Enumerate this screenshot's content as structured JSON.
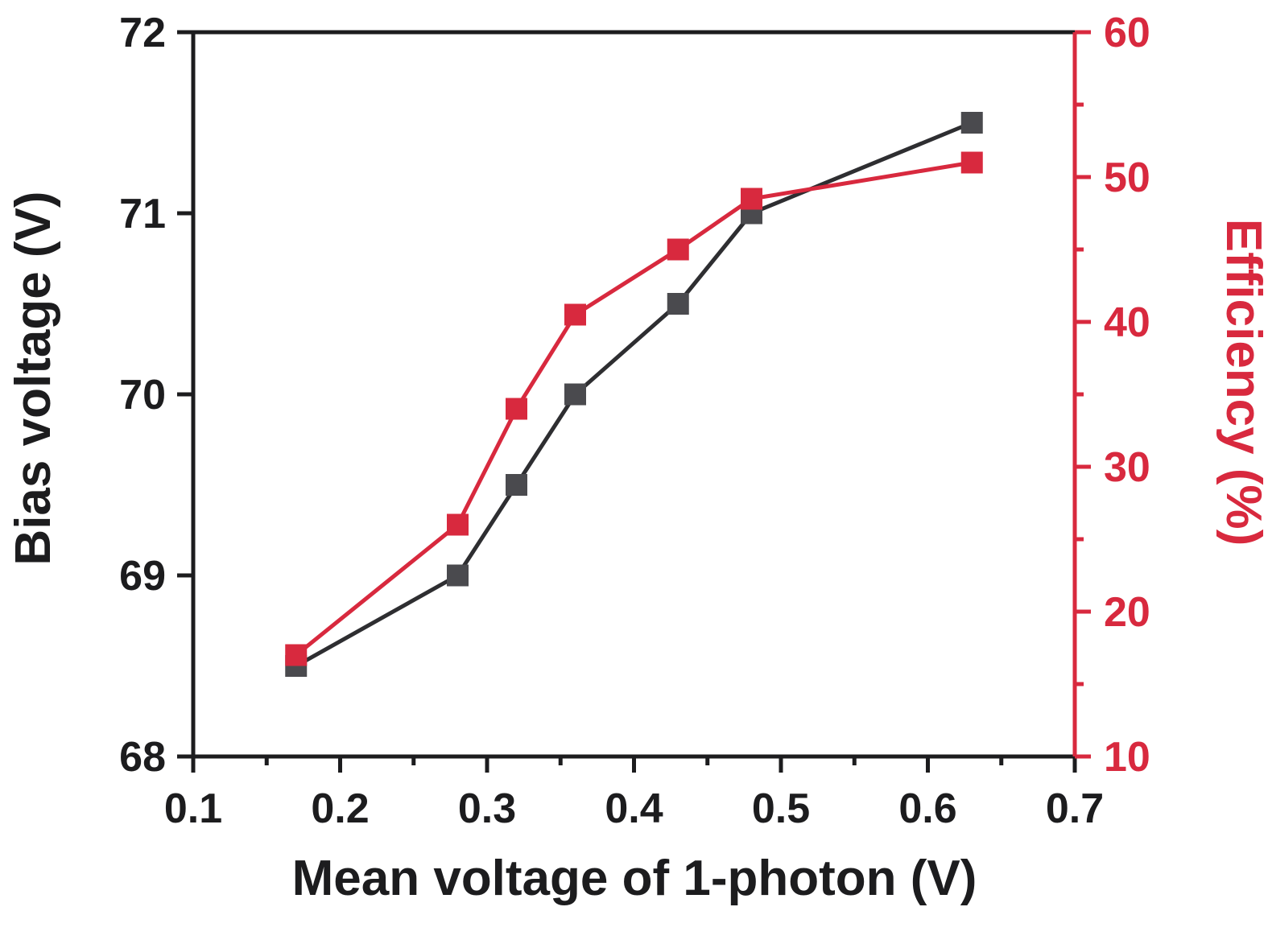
{
  "chart_data": {
    "type": "line",
    "title": "",
    "xlabel": "Mean voltage of 1-photon (V)",
    "ylabel_left": "Bias voltage (V)",
    "ylabel_right": "Efficiency (%)",
    "xlim": [
      0.1,
      0.7
    ],
    "ylim_left": [
      68,
      72
    ],
    "ylim_right": [
      10,
      60
    ],
    "x_ticks": [
      0.1,
      0.2,
      0.3,
      0.4,
      0.5,
      0.6,
      0.7
    ],
    "x_tick_labels": [
      "0.1",
      "0.2",
      "0.3",
      "0.4",
      "0.5",
      "0.6",
      "0.7"
    ],
    "x_minor_step": 0.05,
    "y_left_ticks": [
      68,
      69,
      70,
      71,
      72
    ],
    "y_left_tick_labels": [
      "68",
      "69",
      "70",
      "71",
      "72"
    ],
    "y_right_ticks": [
      10,
      20,
      30,
      40,
      50,
      60
    ],
    "y_right_tick_labels": [
      "10",
      "20",
      "30",
      "40",
      "50",
      "60"
    ],
    "y_right_minor_step": 5,
    "grid": false,
    "legend": "none",
    "x": [
      0.17,
      0.28,
      0.32,
      0.36,
      0.43,
      0.48,
      0.63
    ],
    "series": [
      {
        "name": "Bias voltage",
        "axis": "left",
        "line_color": "#2e2e31",
        "marker_color": "#4a4a4e",
        "marker": "square",
        "values": [
          68.5,
          69.0,
          69.5,
          70.0,
          70.5,
          71.0,
          71.5
        ]
      },
      {
        "name": "Efficiency",
        "axis": "right",
        "line_color": "#d8293e",
        "marker_color": "#d8293e",
        "marker": "square",
        "values": [
          17,
          26,
          34,
          40.5,
          45,
          48.5,
          51
        ]
      }
    ]
  },
  "colors": {
    "background": "#ffffff",
    "left_axis": "#1c1c1e",
    "right_axis": "#d8293e"
  }
}
